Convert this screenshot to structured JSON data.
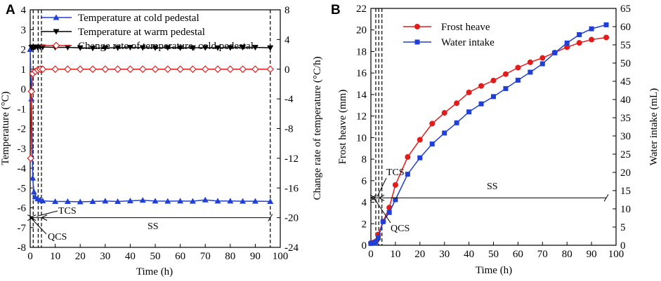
{
  "colors": {
    "blue": "#1f3fd6",
    "black": "#000000",
    "red": "#e21b1b"
  },
  "chart_data": [
    {
      "type": "line",
      "panel": "A",
      "xlabel": "Time (h)",
      "ylabel": "Temperature (°C)",
      "y2label": "Change rate of temperature (°C/h)",
      "xlim": [
        0,
        100
      ],
      "ylim": [
        -8,
        4
      ],
      "y2lim": [
        -24,
        8
      ],
      "xticks": [
        0,
        10,
        20,
        30,
        40,
        50,
        60,
        70,
        80,
        90,
        100
      ],
      "yticks": [
        -8,
        -7,
        -6,
        -5,
        -4,
        -3,
        -2,
        -1,
        0,
        1,
        2,
        3,
        4
      ],
      "y2ticks": [
        -24,
        -20,
        -16,
        -12,
        -8,
        -4,
        0,
        4,
        8
      ],
      "series": [
        {
          "name": "Temperature at cold pedestal",
          "color": "#1f3fd6",
          "marker": "triangle-up",
          "axis": "left",
          "x": [
            0,
            0.5,
            1,
            1.5,
            2,
            3,
            4,
            5,
            10,
            15,
            20,
            25,
            30,
            35,
            40,
            45,
            50,
            55,
            60,
            65,
            70,
            75,
            80,
            85,
            90,
            96
          ],
          "y": [
            2.0,
            -0.5,
            -4.5,
            -5.2,
            -5.45,
            -5.55,
            -5.6,
            -5.65,
            -5.68,
            -5.68,
            -5.7,
            -5.68,
            -5.66,
            -5.68,
            -5.65,
            -5.62,
            -5.66,
            -5.67,
            -5.66,
            -5.67,
            -5.6,
            -5.66,
            -5.66,
            -5.67,
            -5.67,
            -5.68
          ]
        },
        {
          "name": "Temperature at warm pedestal",
          "color": "#000000",
          "marker": "triangle-down",
          "axis": "left",
          "x": [
            0.5,
            1,
            1.5,
            2,
            3,
            4,
            5,
            10,
            15,
            20,
            25,
            30,
            35,
            40,
            45,
            50,
            55,
            60,
            65,
            70,
            75,
            80,
            85,
            90,
            96
          ],
          "y": [
            2.1,
            2.12,
            2.1,
            2.12,
            2.1,
            2.12,
            2.12,
            2.1,
            2.1,
            2.08,
            2.06,
            2.08,
            2.08,
            2.1,
            2.09,
            2.08,
            2.09,
            2.08,
            2.08,
            2.09,
            2.08,
            2.09,
            2.1,
            2.1,
            2.08
          ]
        },
        {
          "name": "Change rate of temperature, cold pedestal",
          "color": "#e21b1b",
          "marker": "diamond-open",
          "axis": "right",
          "x": [
            0.2,
            0.5,
            1,
            2,
            3,
            4,
            5,
            10,
            15,
            20,
            25,
            30,
            35,
            40,
            45,
            50,
            55,
            60,
            65,
            70,
            75,
            80,
            85,
            90,
            96
          ],
          "y": [
            -12,
            -3,
            -0.6,
            -0.3,
            -0.1,
            0,
            0,
            0,
            0,
            0,
            0,
            0,
            0,
            0,
            0,
            0,
            0,
            0,
            0,
            0,
            0,
            0,
            0,
            0,
            0
          ]
        }
      ],
      "vlines_x": [
        1.2,
        3.2,
        4.5,
        96
      ],
      "annotations": {
        "tcs": "TCS",
        "qcs": "QCS",
        "ss": "SS"
      }
    },
    {
      "type": "line",
      "panel": "B",
      "xlabel": "Time (h)",
      "ylabel": "Frost heave (mm)",
      "y2label": "Water intake (mL)",
      "xlim": [
        0,
        100
      ],
      "ylim": [
        0,
        22
      ],
      "y2lim": [
        0,
        65
      ],
      "xticks": [
        0,
        10,
        20,
        30,
        40,
        50,
        60,
        70,
        80,
        90,
        100
      ],
      "yticks": [
        0,
        2,
        4,
        6,
        8,
        10,
        12,
        14,
        16,
        18,
        20,
        22
      ],
      "y2ticks": [
        0,
        5,
        10,
        15,
        20,
        25,
        30,
        35,
        40,
        45,
        50,
        55,
        60,
        65
      ],
      "series": [
        {
          "name": "Frost heave",
          "color": "#e21b1b",
          "marker": "circle",
          "axis": "left",
          "x": [
            0,
            1,
            2,
            3,
            5,
            7.5,
            10,
            15,
            20,
            25,
            30,
            35,
            40,
            45,
            50,
            55,
            60,
            65,
            70,
            75,
            80,
            85,
            90,
            96
          ],
          "y": [
            0.2,
            0.25,
            0.35,
            1.0,
            2.2,
            3.5,
            5.6,
            8.2,
            9.8,
            11.3,
            12.3,
            13.2,
            14.2,
            14.8,
            15.3,
            15.9,
            16.5,
            17.0,
            17.4,
            17.9,
            18.4,
            18.8,
            19.1,
            19.3
          ]
        },
        {
          "name": "Water intake",
          "color": "#1f3fd6",
          "marker": "square",
          "axis": "right",
          "x": [
            0,
            1,
            2,
            3,
            5,
            7.5,
            10,
            15,
            20,
            25,
            30,
            35,
            40,
            45,
            50,
            55,
            60,
            65,
            70,
            75,
            80,
            85,
            90,
            96
          ],
          "y": [
            0.5,
            0.6,
            0.9,
            2.0,
            6.5,
            9.0,
            12.5,
            19.5,
            24.0,
            27.8,
            30.8,
            33.6,
            36.6,
            38.8,
            40.8,
            43.0,
            45.3,
            47.5,
            49.8,
            52.8,
            55.5,
            57.8,
            59.4,
            60.5
          ]
        }
      ],
      "vlines_x": [
        2.0,
        3.2,
        4.5
      ],
      "annotations": {
        "tcs": "TCS",
        "qcs": "QCS",
        "ss": "SS"
      }
    }
  ]
}
